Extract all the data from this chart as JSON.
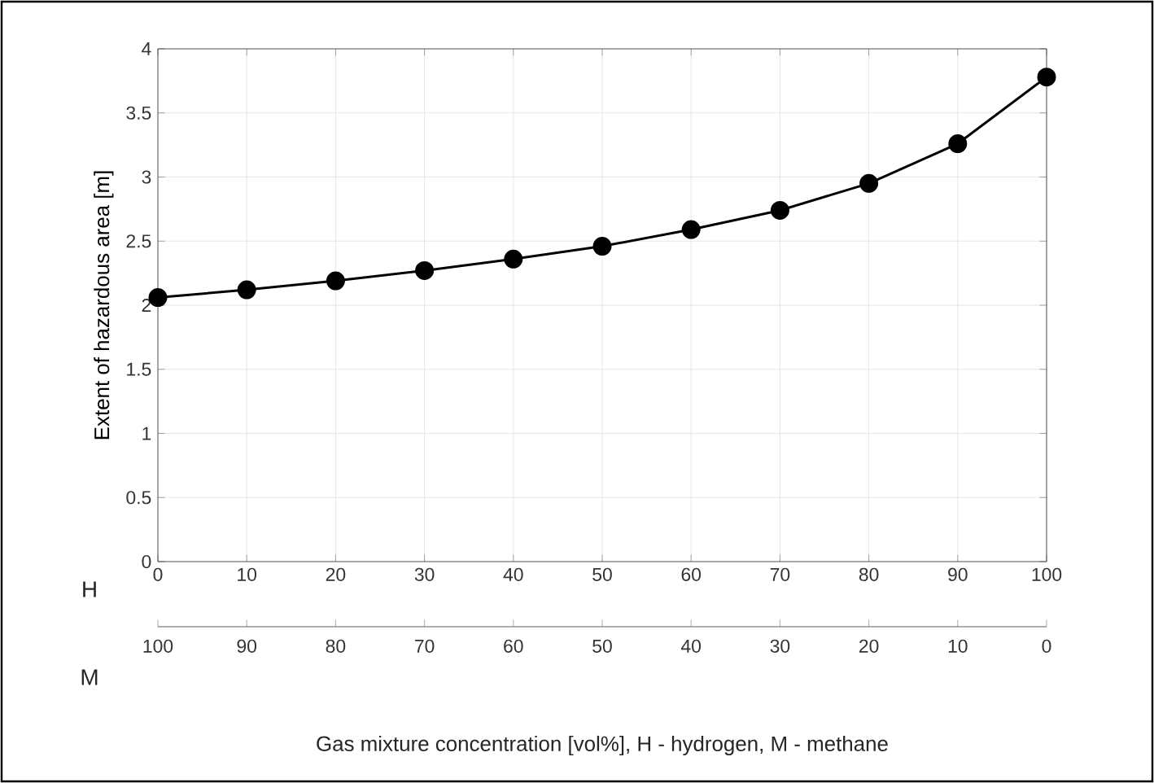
{
  "chart_data": {
    "type": "line",
    "xlabel": "Gas mixture concentration [vol%], H - hydrogen, M - methane",
    "ylabel": "Extent of hazardous area [m]",
    "x": [
      0,
      10,
      20,
      30,
      40,
      50,
      60,
      70,
      80,
      90,
      100
    ],
    "series": [
      {
        "color": "#000000",
        "values": [
          2.06,
          2.12,
          2.19,
          2.27,
          2.36,
          2.46,
          2.59,
          2.74,
          2.95,
          3.26,
          3.78
        ]
      }
    ],
    "xlim": [
      0,
      100
    ],
    "xticks": [
      0,
      10,
      20,
      30,
      40,
      50,
      60,
      70,
      80,
      90,
      100
    ],
    "x2lim": [
      100,
      0
    ],
    "x2ticks": [
      100,
      90,
      80,
      70,
      60,
      50,
      40,
      30,
      20,
      10,
      0
    ],
    "ylim": [
      0,
      4
    ],
    "yticks": [
      0,
      0.5,
      1,
      1.5,
      2,
      2.5,
      3,
      3.5,
      4
    ],
    "annotations": [
      "H",
      "M"
    ],
    "grid": true,
    "marker": "circle",
    "line_style": "solid"
  }
}
